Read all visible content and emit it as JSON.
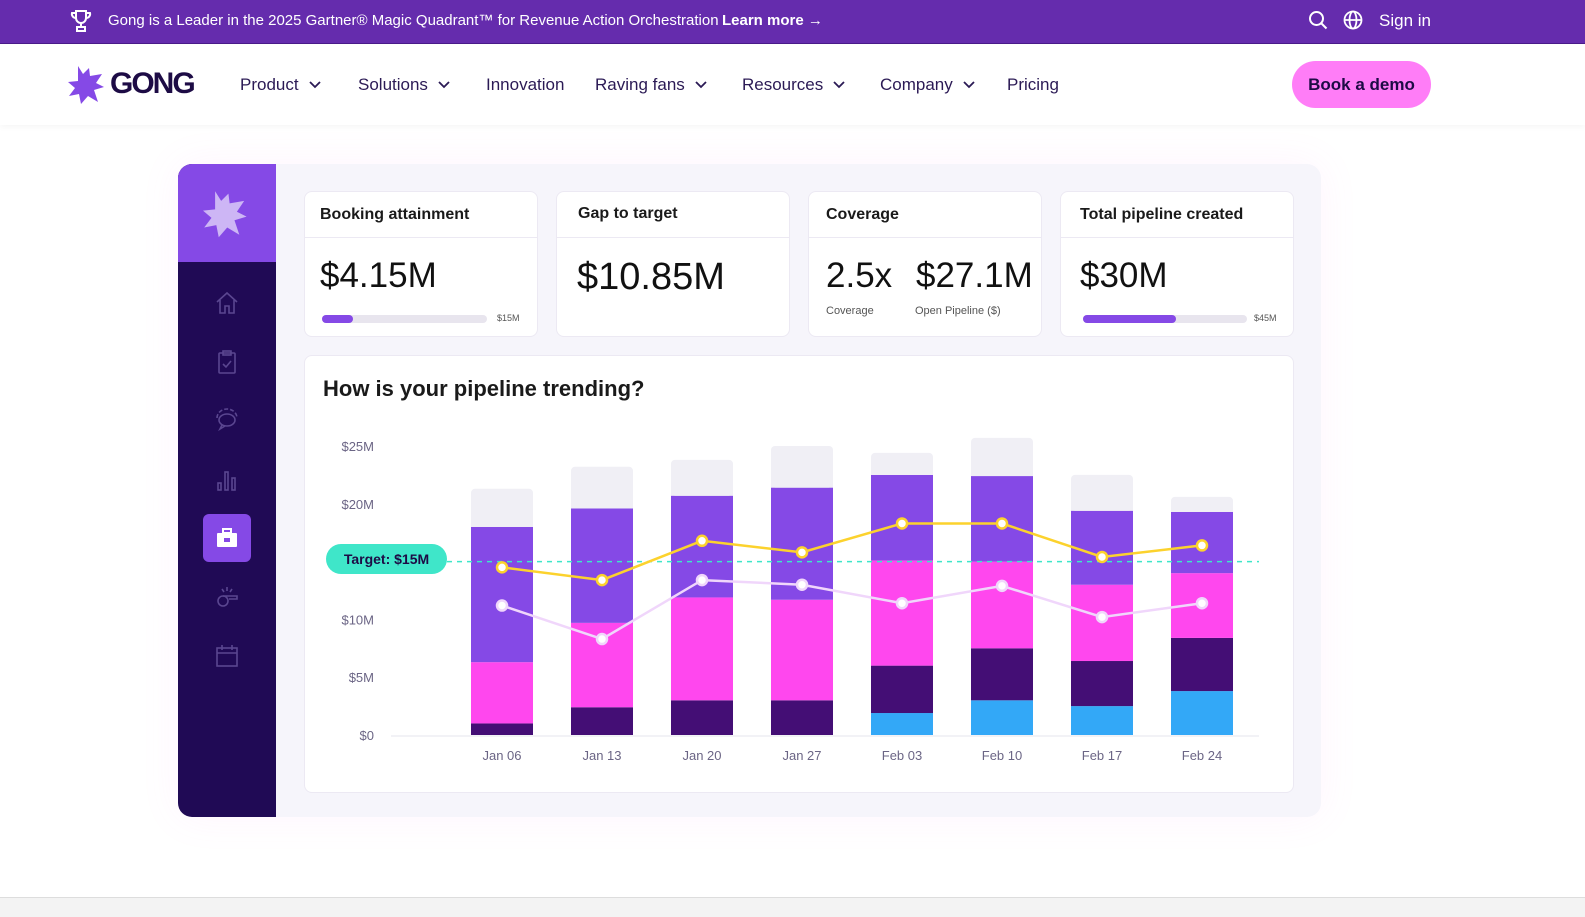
{
  "banner": {
    "message": "Gong is a Leader in the 2025 Gartner® Magic Quadrant™ for Revenue Action Orchestration",
    "learn_more": "Learn more →",
    "sign_in": "Sign in",
    "icons": [
      "trophy-icon",
      "search-icon",
      "globe-icon"
    ]
  },
  "nav": {
    "logo": "GONG",
    "items": [
      {
        "label": "Product",
        "dropdown": true
      },
      {
        "label": "Solutions",
        "dropdown": true
      },
      {
        "label": "Innovation",
        "dropdown": false
      },
      {
        "label": "Raving fans",
        "dropdown": true
      },
      {
        "label": "Resources",
        "dropdown": true
      },
      {
        "label": "Company",
        "dropdown": true
      },
      {
        "label": "Pricing",
        "dropdown": false
      }
    ],
    "cta": "Book a demo"
  },
  "sidebar": {
    "icons": [
      "home-icon",
      "clipboard-check-icon",
      "chat-icon",
      "bar-chart-icon",
      "briefcase-icon",
      "whistle-icon",
      "calendar-icon"
    ],
    "active": "briefcase-icon"
  },
  "cards": [
    {
      "title": "Booking attainment",
      "value": "$4.15M",
      "bar_max": "$15M",
      "bar_fill": 0.19
    },
    {
      "title": "Gap to target",
      "value": "$10.85M"
    },
    {
      "title": "Coverage",
      "value": "2.5x",
      "value_label": "Coverage",
      "value2": "$27.1M",
      "value2_label": "Open Pipeline ($)"
    },
    {
      "title": "Total pipeline created",
      "value": "$30M",
      "bar_max": "$45M",
      "bar_fill": 0.57
    }
  ],
  "chart_data": {
    "type": "bar",
    "stacked": true,
    "title": "How is your pipeline trending?",
    "categories": [
      "Jan 06",
      "Jan 13",
      "Jan 20",
      "Jan 27",
      "Feb 03",
      "Feb 10",
      "Feb 17",
      "Feb 24"
    ],
    "yticks": [
      "$0",
      "$5M",
      "$10M",
      "$15M",
      "$20M",
      "$25M"
    ],
    "ylim": [
      0,
      25
    ],
    "target": {
      "label": "Target: $15M",
      "value": 15,
      "color": "#3fe6c9"
    },
    "series": [
      {
        "color": "#33a8f7",
        "values": [
          0,
          0,
          0,
          0,
          1.9,
          3.0,
          2.5,
          3.8
        ]
      },
      {
        "color": "#440e75",
        "values": [
          1.0,
          2.4,
          3.0,
          3.0,
          4.1,
          4.5,
          3.9,
          4.6
        ]
      },
      {
        "color": "#ff47ee",
        "values": [
          5.3,
          7.3,
          8.9,
          8.7,
          9.1,
          7.5,
          6.6,
          5.6
        ]
      },
      {
        "color": "#8549e6",
        "values": [
          11.7,
          9.9,
          8.8,
          9.7,
          7.4,
          7.4,
          6.4,
          5.3
        ]
      },
      {
        "color": "#f0eff5",
        "values": [
          3.3,
          3.6,
          3.1,
          3.6,
          1.9,
          3.3,
          3.1,
          1.3
        ]
      }
    ],
    "lines": [
      {
        "color": "#fcd22d",
        "values": [
          14.5,
          13.4,
          16.8,
          15.8,
          18.3,
          18.3,
          15.4,
          16.4
        ]
      },
      {
        "color": "#f0d6fb",
        "values": [
          11.2,
          8.3,
          13.4,
          13.0,
          11.4,
          12.9,
          10.2,
          11.4
        ]
      }
    ],
    "grid": false
  }
}
